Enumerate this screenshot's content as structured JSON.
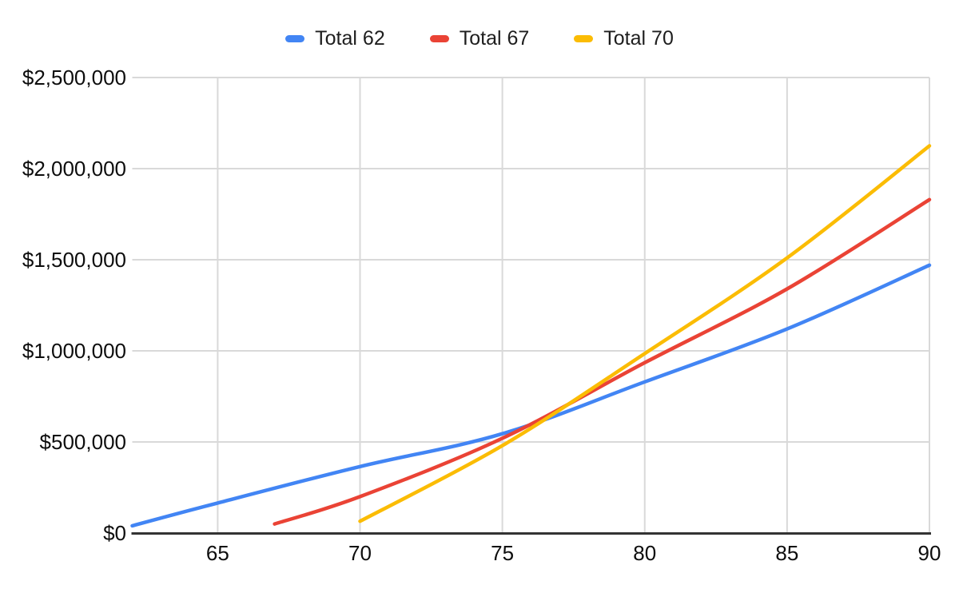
{
  "page": {
    "background": "#ffffff"
  },
  "chart_data": {
    "type": "line",
    "title": "",
    "subtitle": "",
    "legend": {
      "position": "top",
      "items": [
        "Total 62",
        "Total 67",
        "Total 70"
      ]
    },
    "x_axis": {
      "label": "",
      "range": [
        62,
        90
      ],
      "grid": true,
      "ticks": [
        {
          "value": 65,
          "label": "65"
        },
        {
          "value": 70,
          "label": "70"
        },
        {
          "value": 75,
          "label": "75"
        },
        {
          "value": 80,
          "label": "80"
        },
        {
          "value": 85,
          "label": "85"
        },
        {
          "value": 90,
          "label": "90"
        }
      ]
    },
    "y_axis": {
      "label": "",
      "range": [
        0,
        2500000
      ],
      "grid": true,
      "ticks": [
        {
          "value": 0,
          "label": "$0"
        },
        {
          "value": 500000,
          "label": "$500,000"
        },
        {
          "value": 1000000,
          "label": "$1,000,000"
        },
        {
          "value": 1500000,
          "label": "$1,500,000"
        },
        {
          "value": 2000000,
          "label": "$2,000,000"
        },
        {
          "value": 2500000,
          "label": "$2,500,000"
        }
      ]
    },
    "series": [
      {
        "name": "Total 62",
        "color": "#4285F4",
        "points": [
          {
            "age": 62,
            "value": 40000
          },
          {
            "age": 65,
            "value": 165000
          },
          {
            "age": 70,
            "value": 365000
          },
          {
            "age": 75,
            "value": 545000
          },
          {
            "age": 80,
            "value": 830000
          },
          {
            "age": 85,
            "value": 1120000
          },
          {
            "age": 90,
            "value": 1470000
          }
        ]
      },
      {
        "name": "Total 67",
        "color": "#EA4335",
        "points": [
          {
            "age": 67,
            "value": 50000
          },
          {
            "age": 70,
            "value": 200000
          },
          {
            "age": 75,
            "value": 520000
          },
          {
            "age": 80,
            "value": 935000
          },
          {
            "age": 85,
            "value": 1340000
          },
          {
            "age": 90,
            "value": 1830000
          }
        ]
      },
      {
        "name": "Total 70",
        "color": "#FBBC04",
        "points": [
          {
            "age": 70,
            "value": 65000
          },
          {
            "age": 75,
            "value": 480000
          },
          {
            "age": 80,
            "value": 985000
          },
          {
            "age": 85,
            "value": 1510000
          },
          {
            "age": 90,
            "value": 2125000
          }
        ]
      }
    ],
    "styles": {
      "grid_color": "#d9d9d9",
      "axis_color": "#333333",
      "label_color": "#0d0d0d",
      "legend_text_color": "#1e1e1e"
    }
  }
}
